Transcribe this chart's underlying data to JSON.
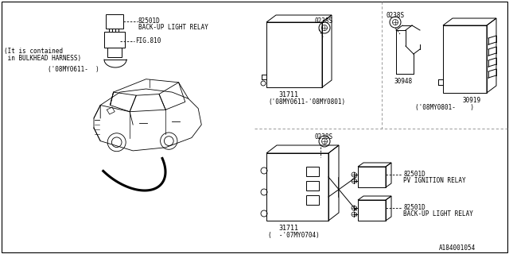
{
  "background_color": "#ffffff",
  "line_color": "#000000",
  "text_color": "#000000",
  "divider_color": "#999999",
  "diagram_id": "A184001054",
  "fs": 5.5,
  "fn": 6.0,
  "parts": {
    "top_left": {
      "relay_label": "82501D",
      "relay_desc": "BACK-UP LIGHT RELAY",
      "fig_label": "FIG.810",
      "fig_note1": "(It is contained",
      "fig_note2": " in BULKHEAD HARNESS)",
      "date_range": "('08MY0611-  )"
    },
    "top_right_left": {
      "connector_label": "0238S",
      "part_number": "31711",
      "date_range": "('08MY0611-'08MY0801)"
    },
    "top_right_right": {
      "connector_label": "0238S",
      "part1_number": "30948",
      "part2_number": "30919",
      "date_range": "('08MY0801-    )"
    },
    "bottom_center": {
      "connector_label": "0238S",
      "part_number": "31711",
      "date_range": "(  -'07MY0704)",
      "relay1_label": "82501D",
      "relay1_desc": "PV IGNITION RELAY",
      "relay2_label": "82501D",
      "relay2_desc": "BACK-UP LIGHT RELAY"
    }
  }
}
